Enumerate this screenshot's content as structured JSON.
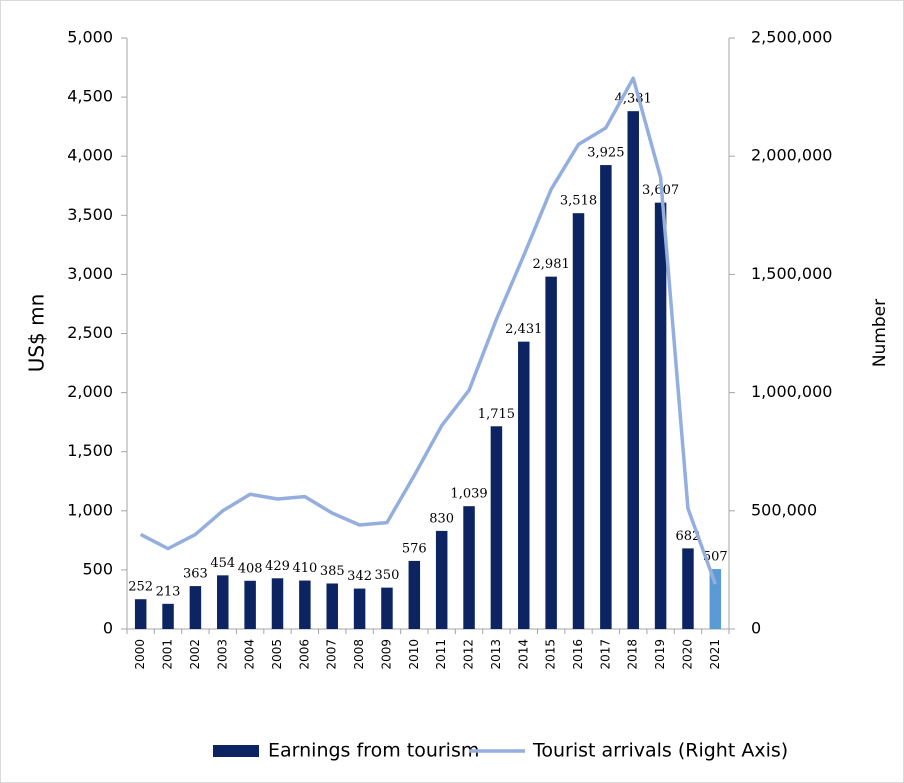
{
  "chart_data": {
    "type": "bar_line",
    "categories": [
      "2000",
      "2001",
      "2002",
      "2003",
      "2004",
      "2005",
      "2006",
      "2007",
      "2008",
      "2009",
      "2010",
      "2011",
      "2012",
      "2013",
      "2014",
      "2015",
      "2016",
      "2017",
      "2018",
      "2019",
      "2020",
      "2021"
    ],
    "ylabel": "US$ mn",
    "y2label": "Number",
    "ylim": [
      0,
      5000
    ],
    "yticks": [
      0,
      500,
      {
        "value": 1000,
        "label": "1,000"
      },
      {
        "value": 1500,
        "label": "1,500"
      },
      {
        "value": 2000,
        "label": "2,000"
      },
      {
        "value": 2500,
        "label": "2,500"
      },
      {
        "value": 3000,
        "label": "3,000"
      },
      {
        "value": 3500,
        "label": "3,500"
      },
      {
        "value": 4000,
        "label": "4,000"
      },
      {
        "value": 4500,
        "label": "4,500"
      },
      {
        "value": 5000,
        "label": "5,000"
      }
    ],
    "y2lim": [
      0,
      2500000
    ],
    "y2ticks": [
      0,
      {
        "value": 500000,
        "label": "500,000"
      },
      {
        "value": 1000000,
        "label": "1,000,000"
      },
      {
        "value": 1500000,
        "label": "1,500,000"
      },
      {
        "value": 2000000,
        "label": "2,000,000"
      },
      {
        "value": 2500000,
        "label": "2,500,000"
      }
    ],
    "legend": "bottom",
    "series": [
      {
        "name": "Earnings from tourism",
        "type": "bar",
        "color": "#0c2461",
        "colors": [
          "#0c2461",
          "#0c2461",
          "#0c2461",
          "#0c2461",
          "#0c2461",
          "#0c2461",
          "#0c2461",
          "#0c2461",
          "#0c2461",
          "#0c2461",
          "#0c2461",
          "#0c2461",
          "#0c2461",
          "#0c2461",
          "#0c2461",
          "#0c2461",
          "#0c2461",
          "#0c2461",
          "#0c2461",
          "#0c2461",
          "#0c2461",
          "#5b9bd5"
        ],
        "values": [
          252,
          213,
          363,
          454,
          408,
          429,
          410,
          385,
          342,
          350,
          576,
          830,
          1039,
          1715,
          2431,
          2981,
          3518,
          3925,
          4381,
          3607,
          682,
          507
        ],
        "value_labels": [
          "252",
          "213",
          "363",
          "454",
          "408",
          "429",
          "410",
          "385",
          "342",
          "350",
          "576",
          "830",
          "1,039",
          "1,715",
          "2,431",
          "2,981",
          "3,518",
          "3,925",
          "4,381",
          "3,607",
          "682",
          "507"
        ]
      },
      {
        "name": "Tourist arrivals (Right Axis)",
        "type": "line",
        "axis": "y2",
        "color": "#93aedf",
        "values": [
          400000,
          340000,
          400000,
          500000,
          570000,
          550000,
          560000,
          490000,
          440000,
          450000,
          650000,
          860000,
          1010000,
          1310000,
          1580000,
          1860000,
          2050000,
          2120000,
          2330000,
          1910000,
          510000,
          190000
        ]
      }
    ]
  }
}
